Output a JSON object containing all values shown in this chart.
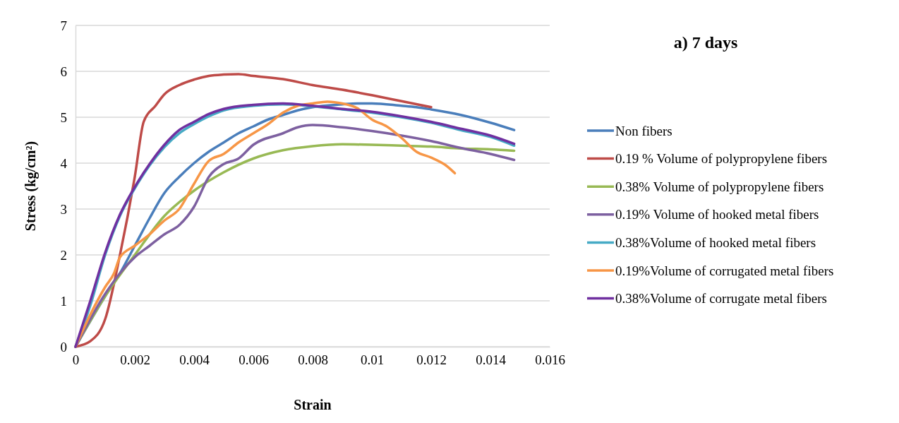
{
  "chart_data": {
    "type": "line",
    "title": "a) 7 days",
    "xlabel": "Strain",
    "ylabel": "Stress (kg/cm²)",
    "xlim": [
      0,
      0.016
    ],
    "xticks": [
      0,
      0.002,
      0.004,
      0.006,
      0.008,
      0.01,
      0.012,
      0.014,
      0.016
    ],
    "ylim": [
      0,
      7
    ],
    "yticks": [
      0,
      1,
      2,
      3,
      4,
      5,
      6,
      7
    ],
    "grid": "y",
    "legend": "right",
    "marker": "none",
    "line_style": "solid",
    "series": [
      {
        "name": "Non fibers",
        "color": "#4a7ebb",
        "x": [
          0,
          0.001,
          0.0015,
          0.002,
          0.0025,
          0.003,
          0.0035,
          0.004,
          0.0045,
          0.005,
          0.0055,
          0.006,
          0.0065,
          0.007,
          0.0075,
          0.008,
          0.009,
          0.0095,
          0.01,
          0.011,
          0.0115,
          0.012,
          0.013,
          0.014,
          0.0148
        ],
        "values": [
          0,
          1.1,
          1.6,
          2.2,
          2.8,
          3.35,
          3.7,
          4.0,
          4.25,
          4.45,
          4.65,
          4.8,
          4.95,
          5.05,
          5.15,
          5.22,
          5.28,
          5.3,
          5.3,
          5.25,
          5.22,
          5.17,
          5.05,
          4.88,
          4.72
        ]
      },
      {
        "name": "0.19 % Volume of polypropylene fibers",
        "color": "#be4b48",
        "x": [
          0,
          0.0005,
          0.001,
          0.0015,
          0.002,
          0.0023,
          0.0027,
          0.003,
          0.0035,
          0.004,
          0.0045,
          0.005,
          0.0055,
          0.006,
          0.007,
          0.008,
          0.009,
          0.01,
          0.011,
          0.012
        ],
        "values": [
          0,
          0.12,
          0.6,
          2.0,
          3.7,
          4.9,
          5.25,
          5.5,
          5.7,
          5.82,
          5.9,
          5.93,
          5.94,
          5.9,
          5.83,
          5.7,
          5.6,
          5.48,
          5.35,
          5.22
        ]
      },
      {
        "name": "0.38% Volume of polypropylene fibers",
        "color": "#98b954",
        "x": [
          0,
          0.001,
          0.002,
          0.003,
          0.004,
          0.005,
          0.006,
          0.007,
          0.008,
          0.009,
          0.01,
          0.011,
          0.012,
          0.013,
          0.014,
          0.0148
        ],
        "values": [
          0,
          1.1,
          2.0,
          2.85,
          3.4,
          3.8,
          4.1,
          4.28,
          4.37,
          4.41,
          4.4,
          4.38,
          4.36,
          4.32,
          4.3,
          4.27
        ]
      },
      {
        "name": "0.19% Volume of hooked metal fibers",
        "color": "#7d60a0",
        "x": [
          0,
          0.001,
          0.0015,
          0.002,
          0.0025,
          0.003,
          0.0035,
          0.004,
          0.0045,
          0.005,
          0.0055,
          0.006,
          0.007,
          0.0075,
          0.008,
          0.009,
          0.01,
          0.011,
          0.012,
          0.013,
          0.014,
          0.0148
        ],
        "values": [
          0,
          1.15,
          1.6,
          1.95,
          2.2,
          2.45,
          2.65,
          3.05,
          3.7,
          3.98,
          4.1,
          4.4,
          4.65,
          4.78,
          4.83,
          4.78,
          4.7,
          4.6,
          4.48,
          4.33,
          4.2,
          4.07
        ]
      },
      {
        "name": "0.38%Volume of hooked metal fibers",
        "color": "#46aac5",
        "x": [
          0,
          0.0005,
          0.001,
          0.0015,
          0.002,
          0.0025,
          0.003,
          0.0035,
          0.004,
          0.0045,
          0.005,
          0.006,
          0.007,
          0.008,
          0.009,
          0.01,
          0.011,
          0.012,
          0.013,
          0.014,
          0.0148
        ],
        "values": [
          0,
          0.9,
          2.0,
          2.85,
          3.45,
          3.95,
          4.35,
          4.65,
          4.85,
          5.02,
          5.15,
          5.25,
          5.28,
          5.24,
          5.17,
          5.1,
          5.0,
          4.88,
          4.72,
          4.57,
          4.38
        ]
      },
      {
        "name": "0.19%Volume of corrugated metal fibers",
        "color": "#f79646",
        "x": [
          0,
          0.0005,
          0.001,
          0.0013,
          0.0015,
          0.002,
          0.0025,
          0.003,
          0.0035,
          0.004,
          0.0045,
          0.005,
          0.0055,
          0.006,
          0.0065,
          0.007,
          0.0075,
          0.008,
          0.0085,
          0.009,
          0.0095,
          0.01,
          0.0105,
          0.011,
          0.0115,
          0.012,
          0.0125,
          0.0128
        ],
        "values": [
          0,
          0.7,
          1.3,
          1.6,
          1.95,
          2.2,
          2.45,
          2.75,
          3.0,
          3.55,
          4.05,
          4.2,
          4.45,
          4.65,
          4.85,
          5.1,
          5.25,
          5.3,
          5.34,
          5.3,
          5.2,
          4.95,
          4.8,
          4.55,
          4.25,
          4.12,
          3.95,
          3.78
        ]
      },
      {
        "name": "0.38%Volume of corrugate metal fibers",
        "color": "#7030a0",
        "x": [
          0,
          0.0005,
          0.001,
          0.0015,
          0.002,
          0.0025,
          0.003,
          0.0035,
          0.004,
          0.0045,
          0.005,
          0.006,
          0.007,
          0.008,
          0.009,
          0.01,
          0.011,
          0.012,
          0.013,
          0.014,
          0.0148
        ],
        "values": [
          0,
          1.0,
          2.05,
          2.88,
          3.48,
          3.98,
          4.4,
          4.72,
          4.9,
          5.07,
          5.18,
          5.27,
          5.3,
          5.25,
          5.18,
          5.12,
          5.02,
          4.9,
          4.75,
          4.6,
          4.42
        ]
      }
    ]
  }
}
